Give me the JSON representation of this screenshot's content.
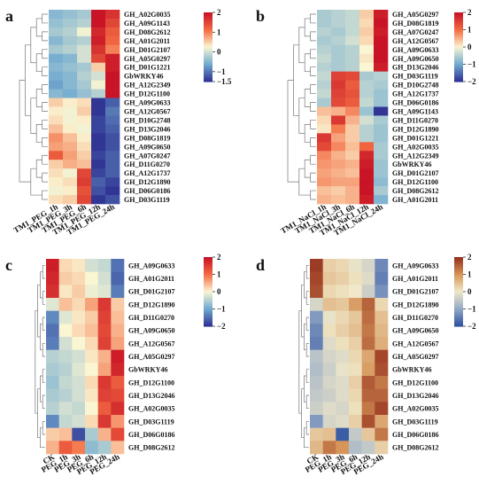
{
  "chart_data": [
    {
      "type": "heatmap",
      "panel": "a",
      "columns": [
        "TM1_PEG_1h",
        "TM1_PEG_3h",
        "TM1_PEG_6h",
        "TM1_PEG_12h",
        "TM1_PEG_24h"
      ],
      "rows": [
        "GH_A02G0035",
        "GH_A09G1143",
        "GH_D08G2612",
        "GH_A01G2011",
        "GH_D01G2107",
        "GH_A05G0297",
        "GH_D01G1221",
        "GbWRKY46",
        "GH_A12G2349",
        "GH_D12G1100",
        "GH_A09G0633",
        "GH_A12G0567",
        "GH_D10G2748",
        "GH_D13G2046",
        "GH_D08G1819",
        "GH_A09G0650",
        "GH_A07G0247",
        "GH_D11G0270",
        "GH_A12G1737",
        "GH_D12G1890",
        "GH_D06G0186",
        "GH_D03G1119"
      ],
      "values": [
        [
          -0.5,
          -0.4,
          -0.3,
          2.0,
          1.7
        ],
        [
          -0.4,
          -0.3,
          -0.2,
          2.0,
          1.5
        ],
        [
          -0.3,
          -0.2,
          0.2,
          1.8,
          1.3
        ],
        [
          -0.5,
          -0.3,
          -0.2,
          1.9,
          1.2
        ],
        [
          -0.3,
          -0.2,
          0.0,
          1.7,
          1.0
        ],
        [
          -0.6,
          -0.5,
          0.0,
          1.5,
          1.9
        ],
        [
          -0.5,
          -0.4,
          -0.3,
          0.5,
          1.9
        ],
        [
          -0.6,
          -0.5,
          -0.2,
          0.0,
          2.0
        ],
        [
          -0.7,
          -0.5,
          -0.3,
          0.2,
          2.0
        ],
        [
          -0.5,
          -0.6,
          -0.4,
          -0.2,
          2.0
        ],
        [
          0.5,
          0.3,
          0.4,
          -1.5,
          -1.2
        ],
        [
          0.3,
          0.2,
          0.5,
          -1.5,
          -1.0
        ],
        [
          0.4,
          0.2,
          0.3,
          -1.4,
          -1.1
        ],
        [
          0.6,
          0.3,
          0.2,
          -1.4,
          -1.2
        ],
        [
          0.9,
          0.6,
          0.3,
          -1.5,
          -1.3
        ],
        [
          0.8,
          0.7,
          0.4,
          -1.5,
          -1.3
        ],
        [
          1.3,
          0.8,
          0.5,
          -1.4,
          -1.2
        ],
        [
          0.5,
          0.7,
          0.6,
          -1.5,
          -1.2
        ],
        [
          0.4,
          0.2,
          1.5,
          -1.4,
          -1.2
        ],
        [
          0.3,
          0.4,
          1.6,
          -1.2,
          -1.4
        ],
        [
          0.2,
          0.3,
          1.4,
          -1.3,
          -1.5
        ],
        [
          0.4,
          0.5,
          1.5,
          -1.5,
          -1.3
        ]
      ],
      "colorbar": {
        "ticks": [
          "2",
          "1",
          "0",
          "−1",
          "−1.5"
        ],
        "range": [
          -1.5,
          2
        ]
      }
    },
    {
      "type": "heatmap",
      "panel": "b",
      "columns": [
        "TM1_NaCl_1h",
        "TM1_NaCl_3h",
        "TM1_NaCl_6h",
        "TM1_NaCl_12h",
        "TM1_NaCl_24h"
      ],
      "rows": [
        "GH_A05G0297",
        "GH_D08G1819",
        "GH_A07G0247",
        "GH_A12G0567",
        "GH_A09G0633",
        "GH_A09G0650",
        "GH_D13G2046",
        "GH_D03G1119",
        "GH_D10G2748",
        "GH_A12G1737",
        "GH_D06G0186",
        "GH_A09G1143",
        "GH_D11G0270",
        "GH_D12G1890",
        "GH_D01G1221",
        "GH_A02G0035",
        "GH_A12G2349",
        "GbWRKY46",
        "GH_D01G2107",
        "GH_D12G1100",
        "GH_D08G2612",
        "GH_A01G2011"
      ],
      "values": [
        [
          -0.6,
          -0.5,
          -0.4,
          0.3,
          1.9
        ],
        [
          -0.6,
          -0.5,
          -0.4,
          0.2,
          2.0
        ],
        [
          -0.5,
          -0.6,
          -0.4,
          0.3,
          1.9
        ],
        [
          -0.6,
          -0.5,
          -0.3,
          0.2,
          2.0
        ],
        [
          -0.5,
          -0.6,
          -0.5,
          0.0,
          2.0
        ],
        [
          -0.4,
          -0.6,
          -0.5,
          0.1,
          2.0
        ],
        [
          -0.5,
          -0.6,
          -0.5,
          0.0,
          1.9
        ],
        [
          -0.4,
          1.5,
          1.4,
          -0.6,
          -0.5
        ],
        [
          -0.5,
          1.6,
          1.2,
          -0.5,
          -0.6
        ],
        [
          -0.4,
          1.5,
          1.3,
          -0.5,
          -0.7
        ],
        [
          -0.6,
          1.4,
          1.2,
          -0.4,
          -0.7
        ],
        [
          0.4,
          0.5,
          0.8,
          -0.7,
          -2.0
        ],
        [
          0.2,
          1.6,
          0.5,
          -0.3,
          -0.6
        ],
        [
          0.1,
          0.9,
          0.3,
          -0.5,
          -0.7
        ],
        [
          1.6,
          0.6,
          0.3,
          -0.5,
          -0.7
        ],
        [
          1.4,
          0.8,
          0.4,
          1.1,
          -0.6
        ],
        [
          0.8,
          0.5,
          0.3,
          1.8,
          -0.6
        ],
        [
          0.7,
          0.6,
          0.5,
          1.9,
          -0.7
        ],
        [
          0.6,
          0.5,
          0.4,
          2.0,
          -0.7
        ],
        [
          0.7,
          0.6,
          0.6,
          2.0,
          -0.8
        ],
        [
          0.4,
          0.3,
          0.5,
          2.0,
          -0.6
        ],
        [
          0.5,
          0.4,
          0.5,
          1.9,
          -0.9
        ]
      ],
      "colorbar": {
        "ticks": [
          "2",
          "1",
          "0",
          "−1",
          "−2"
        ],
        "range": [
          -2,
          2
        ]
      }
    },
    {
      "type": "heatmap",
      "panel": "c",
      "columns": [
        "CK",
        "PEG_1h",
        "PEG_3h",
        "PEG_6h",
        "PEG_12h",
        "PEG_24h"
      ],
      "rows": [
        "GH_A09G0633",
        "GH_A01G2011",
        "GH_D01G2107",
        "GH_D12G1890",
        "GH_D11G0270",
        "GH_A09G0650",
        "GH_A12G0567",
        "GH_A05G0297",
        "GbWRKY46",
        "GH_D12G1100",
        "GH_D13G2046",
        "GH_A02G0035",
        "GH_D03G1119",
        "GH_D06G0186",
        "GH_D08G2612"
      ],
      "values": [
        [
          1.9,
          0.2,
          0.1,
          -0.3,
          -0.4,
          -1.5
        ],
        [
          1.8,
          0.3,
          0.2,
          0.0,
          -0.3,
          -1.6
        ],
        [
          1.7,
          0.1,
          0.3,
          -0.1,
          -0.2,
          -1.4
        ],
        [
          -0.2,
          0.4,
          0.2,
          0.6,
          1.6,
          0.3
        ],
        [
          -1.3,
          -0.2,
          0.1,
          0.3,
          1.5,
          0.4
        ],
        [
          -1.5,
          0.0,
          0.2,
          0.4,
          1.4,
          0.5
        ],
        [
          -1.4,
          -0.3,
          0.0,
          0.2,
          1.5,
          0.6
        ],
        [
          -0.5,
          -0.4,
          -0.3,
          0.1,
          0.5,
          1.9
        ],
        [
          -0.6,
          -0.5,
          -0.2,
          0.0,
          0.6,
          1.8
        ],
        [
          -0.7,
          -0.4,
          -0.3,
          0.2,
          1.6,
          1.2
        ],
        [
          -0.6,
          -0.5,
          -0.3,
          0.1,
          1.5,
          1.4
        ],
        [
          -0.5,
          -0.3,
          -0.4,
          0.0,
          1.2,
          1.7
        ],
        [
          -1.3,
          -0.4,
          -0.3,
          0.2,
          1.6,
          0.7
        ],
        [
          0.3,
          0.4,
          -1.8,
          -0.6,
          0.5,
          1.4
        ],
        [
          0.5,
          1.2,
          0.9,
          -0.8,
          -0.6,
          0.4
        ]
      ],
      "colorbar": {
        "ticks": [
          "2",
          "1",
          "0",
          "−1",
          "−2"
        ],
        "range": [
          -2,
          2
        ]
      }
    },
    {
      "type": "heatmap",
      "panel": "d",
      "columns": [
        "CK",
        "PEG_1h",
        "PEG_3h",
        "PEG_6h",
        "PEG_12h",
        "PEG_24h"
      ],
      "rows": [
        "GH_A09G0633",
        "GH_A01G2011",
        "GH_D01G2107",
        "GH_D12G1890",
        "GH_D11G0270",
        "GH_A09G0650",
        "GH_A12G0567",
        "GH_A05G0297",
        "GbWRKY46",
        "GH_D12G1100",
        "GH_D13G2046",
        "GH_A02G0035",
        "GH_D03G1119",
        "GH_D06G0186",
        "GH_D08G2612"
      ],
      "values": [
        [
          1.9,
          0.3,
          0.2,
          -0.1,
          -0.3,
          -1.4
        ],
        [
          1.8,
          0.4,
          0.3,
          0.1,
          -0.2,
          -1.5
        ],
        [
          1.7,
          0.2,
          0.1,
          0.0,
          -0.4,
          -1.3
        ],
        [
          -0.3,
          0.5,
          0.4,
          0.9,
          1.5,
          0.2
        ],
        [
          -1.2,
          -0.1,
          0.2,
          0.4,
          1.4,
          0.5
        ],
        [
          -1.4,
          0.1,
          0.3,
          0.5,
          1.3,
          0.6
        ],
        [
          -1.5,
          -0.2,
          0.1,
          0.3,
          1.4,
          0.7
        ],
        [
          -0.6,
          -0.3,
          -0.2,
          0.2,
          0.8,
          1.8
        ],
        [
          -0.7,
          -0.4,
          -0.1,
          0.1,
          0.9,
          1.7
        ],
        [
          -0.6,
          -0.3,
          -0.2,
          0.3,
          1.6,
          1.3
        ],
        [
          -0.5,
          -0.4,
          -0.2,
          0.2,
          1.5,
          1.5
        ],
        [
          -0.4,
          -0.2,
          -0.3,
          0.1,
          1.3,
          1.8
        ],
        [
          -1.2,
          -0.3,
          -0.2,
          0.3,
          1.7,
          0.8
        ],
        [
          0.4,
          0.5,
          -1.9,
          -0.5,
          0.4,
          1.3
        ],
        [
          0.6,
          1.3,
          1.0,
          -0.7,
          -0.5,
          0.3
        ]
      ],
      "colorbar": {
        "ticks": [
          "2",
          "1",
          "0",
          "−1",
          "−2"
        ],
        "range": [
          -2,
          2
        ]
      }
    }
  ]
}
